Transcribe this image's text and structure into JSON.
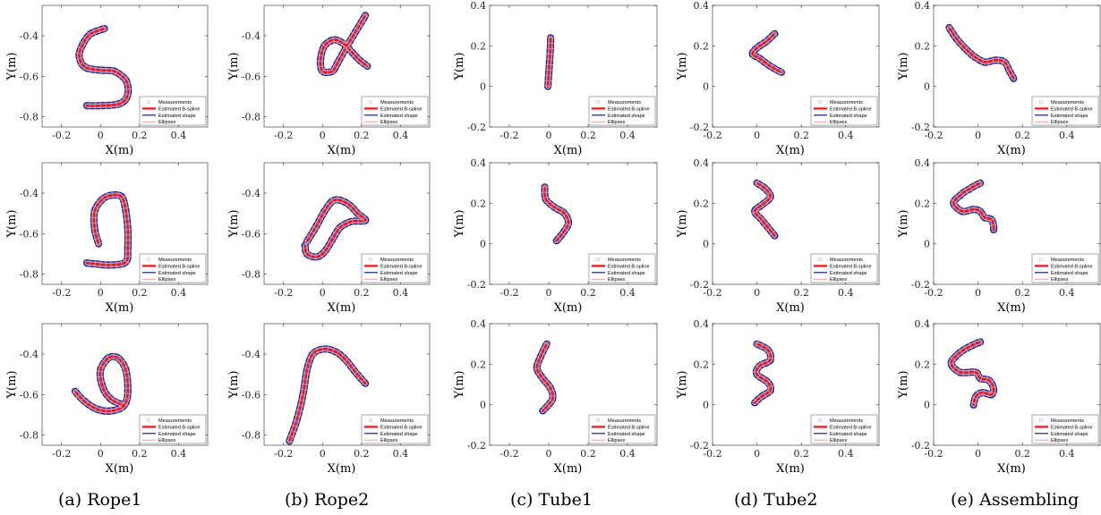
{
  "legend_entries": [
    "Measurements",
    "Estimated B-spline",
    "Estimated shape",
    "Ellipses"
  ],
  "colors": {
    "measurements": "#b9b9ee",
    "bspline": "#e8141e",
    "shape": "#1a1a6e",
    "ellipses": "#ff7f7f",
    "axis": "#262626",
    "tick_text": "#262626"
  },
  "captions": [
    "(a) Rope1",
    "(b) Rope2",
    "(c) Tube1",
    "(d) Tube2",
    "(e) Assembling"
  ],
  "chart_data": [
    {
      "type": "scatter",
      "panel": "a1",
      "xlabel": "X(m)",
      "ylabel": "Y(m)",
      "xlim": [
        -0.3,
        0.55
      ],
      "ylim": [
        -0.85,
        -0.25
      ],
      "xticks": [
        "-0.2",
        "0",
        "0.2",
        "0.4"
      ],
      "yticks": [
        "-0.4",
        "-0.6",
        "-0.8"
      ],
      "legend": "bottom-right",
      "curve": [
        [
          0.02,
          -0.365
        ],
        [
          -0.05,
          -0.39
        ],
        [
          -0.09,
          -0.44
        ],
        [
          -0.11,
          -0.5
        ],
        [
          -0.08,
          -0.555
        ],
        [
          0.0,
          -0.57
        ],
        [
          0.07,
          -0.575
        ],
        [
          0.13,
          -0.62
        ],
        [
          0.14,
          -0.69
        ],
        [
          0.1,
          -0.735
        ],
        [
          0.0,
          -0.745
        ],
        [
          -0.07,
          -0.745
        ]
      ]
    },
    {
      "type": "scatter",
      "panel": "b1",
      "xlabel": "X(m)",
      "ylabel": "Y(m)",
      "xlim": [
        -0.3,
        0.55
      ],
      "ylim": [
        -0.85,
        -0.25
      ],
      "xticks": [
        "-0.2",
        "0",
        "0.2",
        "0.4"
      ],
      "yticks": [
        "-0.4",
        "-0.6",
        "-0.8"
      ],
      "legend": "bottom-right",
      "curve": [
        [
          0.22,
          -0.3
        ],
        [
          0.17,
          -0.38
        ],
        [
          0.12,
          -0.46
        ],
        [
          0.08,
          -0.53
        ],
        [
          0.05,
          -0.575
        ],
        [
          0.0,
          -0.575
        ],
        [
          -0.01,
          -0.52
        ],
        [
          0.01,
          -0.45
        ],
        [
          0.06,
          -0.42
        ],
        [
          0.11,
          -0.44
        ],
        [
          0.15,
          -0.48
        ],
        [
          0.19,
          -0.52
        ],
        [
          0.23,
          -0.55
        ]
      ]
    },
    {
      "type": "scatter",
      "panel": "c1",
      "xlabel": "X(m)",
      "ylabel": "Y(m)",
      "xlim": [
        -0.3,
        0.55
      ],
      "ylim": [
        -0.2,
        0.4
      ],
      "xticks": [
        "-0.2",
        "0",
        "0.2",
        "0.4"
      ],
      "yticks": [
        "0.4",
        "0.2",
        "0",
        "-0.2"
      ],
      "legend": "bottom-right",
      "curve": [
        [
          0.01,
          0.24
        ],
        [
          0.008,
          0.18
        ],
        [
          0.004,
          0.12
        ],
        [
          0.0,
          0.06
        ],
        [
          -0.004,
          0.0
        ]
      ]
    },
    {
      "type": "scatter",
      "panel": "d1",
      "xlabel": "X(m)",
      "ylabel": "Y(m)",
      "xlim": [
        -0.2,
        0.55
      ],
      "ylim": [
        -0.2,
        0.4
      ],
      "xticks": [
        "-0.2",
        "0",
        "0.2",
        "0.4"
      ],
      "yticks": [
        "0.4",
        "0.2",
        "0",
        "-0.2"
      ],
      "legend": "bottom-right",
      "curve": [
        [
          0.08,
          0.26
        ],
        [
          0.04,
          0.22
        ],
        [
          0.0,
          0.19
        ],
        [
          -0.02,
          0.16
        ],
        [
          0.01,
          0.14
        ],
        [
          0.06,
          0.1
        ],
        [
          0.11,
          0.07
        ]
      ]
    },
    {
      "type": "scatter",
      "panel": "e1",
      "xlabel": "X(m)",
      "ylabel": "Y(m)",
      "xlim": [
        -0.2,
        0.55
      ],
      "ylim": [
        -0.2,
        0.4
      ],
      "xticks": [
        "-0.2",
        "0",
        "0.2",
        "0.4"
      ],
      "yticks": [
        "0.4",
        "0.2",
        "0",
        "-0.2"
      ],
      "legend": "bottom-right",
      "curve": [
        [
          -0.13,
          0.29
        ],
        [
          -0.1,
          0.24
        ],
        [
          -0.06,
          0.19
        ],
        [
          -0.02,
          0.15
        ],
        [
          0.03,
          0.12
        ],
        [
          0.08,
          0.13
        ],
        [
          0.12,
          0.12
        ],
        [
          0.14,
          0.08
        ],
        [
          0.16,
          0.04
        ]
      ]
    },
    {
      "type": "scatter",
      "panel": "a2",
      "xlabel": "X(m)",
      "ylabel": "Y(m)",
      "xlim": [
        -0.3,
        0.55
      ],
      "ylim": [
        -0.85,
        -0.25
      ],
      "xticks": [
        "-0.2",
        "0",
        "0.2",
        "0.4"
      ],
      "yticks": [
        "-0.4",
        "-0.6",
        "-0.8"
      ],
      "legend": "bottom-right",
      "curve": [
        [
          -0.01,
          -0.65
        ],
        [
          -0.03,
          -0.58
        ],
        [
          -0.03,
          -0.49
        ],
        [
          0.01,
          -0.43
        ],
        [
          0.06,
          -0.41
        ],
        [
          0.11,
          -0.42
        ],
        [
          0.13,
          -0.49
        ],
        [
          0.14,
          -0.58
        ],
        [
          0.14,
          -0.67
        ],
        [
          0.13,
          -0.74
        ],
        [
          0.05,
          -0.755
        ],
        [
          -0.02,
          -0.75
        ],
        [
          -0.07,
          -0.745
        ]
      ]
    },
    {
      "type": "scatter",
      "panel": "b2",
      "xlabel": "X(m)",
      "ylabel": "Y(m)",
      "xlim": [
        -0.3,
        0.55
      ],
      "ylim": [
        -0.85,
        -0.25
      ],
      "xticks": [
        "-0.2",
        "0",
        "0.2",
        "0.4"
      ],
      "yticks": [
        "-0.4",
        "-0.6",
        "-0.8"
      ],
      "legend": "bottom-right",
      "curve": [
        [
          -0.08,
          -0.64
        ],
        [
          -0.03,
          -0.56
        ],
        [
          0.01,
          -0.49
        ],
        [
          0.05,
          -0.44
        ],
        [
          0.09,
          -0.435
        ],
        [
          0.14,
          -0.46
        ],
        [
          0.18,
          -0.5
        ],
        [
          0.22,
          -0.535
        ],
        [
          0.15,
          -0.54
        ],
        [
          0.09,
          -0.57
        ],
        [
          0.05,
          -0.63
        ],
        [
          0.01,
          -0.69
        ],
        [
          -0.03,
          -0.715
        ],
        [
          -0.08,
          -0.7
        ],
        [
          -0.09,
          -0.66
        ]
      ]
    },
    {
      "type": "scatter",
      "panel": "c2",
      "xlabel": "X(m)",
      "ylabel": "Y(m)",
      "xlim": [
        -0.3,
        0.55
      ],
      "ylim": [
        -0.2,
        0.4
      ],
      "xticks": [
        "-0.2",
        "0",
        "0.2",
        "0.4"
      ],
      "yticks": [
        "0.4",
        "0.2",
        "0",
        "-0.2"
      ],
      "legend": "bottom-right",
      "curve": [
        [
          -0.02,
          0.28
        ],
        [
          -0.015,
          0.22
        ],
        [
          0.03,
          0.18
        ],
        [
          0.08,
          0.15
        ],
        [
          0.1,
          0.1
        ],
        [
          0.07,
          0.05
        ],
        [
          0.04,
          0.015
        ]
      ]
    },
    {
      "type": "scatter",
      "panel": "d2",
      "xlabel": "X(m)",
      "ylabel": "Y(m)",
      "xlim": [
        -0.2,
        0.55
      ],
      "ylim": [
        -0.2,
        0.4
      ],
      "xticks": [
        "-0.2",
        "0",
        "0.2",
        "0.4"
      ],
      "yticks": [
        "0.4",
        "0.2",
        "0",
        "-0.2"
      ],
      "legend": "bottom-right",
      "curve": [
        [
          0.0,
          0.3
        ],
        [
          0.04,
          0.27
        ],
        [
          0.06,
          0.23
        ],
        [
          0.02,
          0.19
        ],
        [
          -0.01,
          0.16
        ],
        [
          0.02,
          0.12
        ],
        [
          0.05,
          0.08
        ],
        [
          0.08,
          0.04
        ]
      ]
    },
    {
      "type": "scatter",
      "panel": "e2",
      "xlabel": "X(m)",
      "ylabel": "Y(m)",
      "xlim": [
        -0.2,
        0.55
      ],
      "ylim": [
        -0.2,
        0.4
      ],
      "xticks": [
        "-0.2",
        "0",
        "0.2",
        "0.4"
      ],
      "yticks": [
        "0.4",
        "0.2",
        "0",
        "-0.2"
      ],
      "legend": "bottom-right",
      "curve": [
        [
          0.01,
          0.3
        ],
        [
          -0.04,
          0.27
        ],
        [
          -0.08,
          0.24
        ],
        [
          -0.11,
          0.2
        ],
        [
          -0.07,
          0.16
        ],
        [
          -0.02,
          0.17
        ],
        [
          0.01,
          0.16
        ],
        [
          0.03,
          0.13
        ],
        [
          0.06,
          0.12
        ],
        [
          0.07,
          0.09
        ],
        [
          0.07,
          0.07
        ]
      ]
    },
    {
      "type": "scatter",
      "panel": "a3",
      "xlabel": "X(m)",
      "ylabel": "Y(m)",
      "xlim": [
        -0.3,
        0.55
      ],
      "ylim": [
        -0.85,
        -0.25
      ],
      "xticks": [
        "-0.2",
        "0",
        "0.2",
        "0.4"
      ],
      "yticks": [
        "-0.4",
        "-0.6",
        "-0.8"
      ],
      "legend": "bottom-right",
      "curve": [
        [
          -0.13,
          -0.585
        ],
        [
          -0.08,
          -0.635
        ],
        [
          -0.01,
          -0.675
        ],
        [
          0.06,
          -0.68
        ],
        [
          0.12,
          -0.655
        ],
        [
          0.14,
          -0.59
        ],
        [
          0.13,
          -0.48
        ],
        [
          0.09,
          -0.42
        ],
        [
          0.04,
          -0.42
        ],
        [
          0.0,
          -0.48
        ],
        [
          0.01,
          -0.56
        ],
        [
          0.05,
          -0.62
        ],
        [
          0.11,
          -0.65
        ]
      ]
    },
    {
      "type": "scatter",
      "panel": "b3",
      "xlabel": "X(m)",
      "ylabel": "Y(m)",
      "xlim": [
        -0.3,
        0.55
      ],
      "ylim": [
        -0.85,
        -0.25
      ],
      "xticks": [
        "-0.2",
        "0",
        "0.2",
        "0.4"
      ],
      "yticks": [
        "-0.4",
        "-0.6",
        "-0.8"
      ],
      "legend": "bottom-right",
      "curve": [
        [
          -0.17,
          -0.83
        ],
        [
          -0.13,
          -0.72
        ],
        [
          -0.1,
          -0.6
        ],
        [
          -0.08,
          -0.48
        ],
        [
          -0.05,
          -0.4
        ],
        [
          0.01,
          -0.375
        ],
        [
          0.07,
          -0.39
        ],
        [
          0.12,
          -0.43
        ],
        [
          0.17,
          -0.49
        ],
        [
          0.22,
          -0.545
        ]
      ]
    },
    {
      "type": "scatter",
      "panel": "c3",
      "xlabel": "X(m)",
      "ylabel": "Y(m)",
      "xlim": [
        -0.3,
        0.55
      ],
      "ylim": [
        -0.2,
        0.4
      ],
      "xticks": [
        "-0.2",
        "0",
        "0.2",
        "0.4"
      ],
      "yticks": [
        "0.4",
        "0.2",
        "0",
        "-0.2"
      ],
      "legend": "bottom-right",
      "curve": [
        [
          -0.01,
          0.3
        ],
        [
          -0.04,
          0.24
        ],
        [
          -0.06,
          0.18
        ],
        [
          -0.03,
          0.13
        ],
        [
          0.01,
          0.08
        ],
        [
          0.02,
          0.03
        ],
        [
          -0.01,
          -0.01
        ],
        [
          -0.03,
          -0.03
        ]
      ]
    },
    {
      "type": "scatter",
      "panel": "d3",
      "xlabel": "X(m)",
      "ylabel": "Y(m)",
      "xlim": [
        -0.2,
        0.55
      ],
      "ylim": [
        -0.2,
        0.4
      ],
      "xticks": [
        "-0.2",
        "0",
        "0.2",
        "0.4"
      ],
      "yticks": [
        "0.4",
        "0.2",
        "0",
        "-0.2"
      ],
      "legend": "bottom-right",
      "curve": [
        [
          0.0,
          0.3
        ],
        [
          0.05,
          0.27
        ],
        [
          0.06,
          0.22
        ],
        [
          0.01,
          0.19
        ],
        [
          0.0,
          0.15
        ],
        [
          0.05,
          0.11
        ],
        [
          0.06,
          0.07
        ],
        [
          0.02,
          0.04
        ],
        [
          -0.01,
          0.01
        ]
      ]
    },
    {
      "type": "scatter",
      "panel": "e3",
      "xlabel": "X(m)",
      "ylabel": "Y(m)",
      "xlim": [
        -0.2,
        0.55
      ],
      "ylim": [
        -0.2,
        0.4
      ],
      "xticks": [
        "-0.2",
        "0",
        "0.2",
        "0.4"
      ],
      "yticks": [
        "0.4",
        "0.2",
        "0",
        "-0.2"
      ],
      "legend": "bottom-right",
      "curve": [
        [
          0.01,
          0.31
        ],
        [
          -0.05,
          0.28
        ],
        [
          -0.1,
          0.24
        ],
        [
          -0.12,
          0.2
        ],
        [
          -0.08,
          0.16
        ],
        [
          -0.01,
          0.16
        ],
        [
          0.01,
          0.13
        ],
        [
          0.05,
          0.12
        ],
        [
          0.07,
          0.08
        ],
        [
          0.06,
          0.05
        ],
        [
          0.02,
          0.06
        ],
        [
          -0.01,
          0.04
        ],
        [
          -0.02,
          0.0
        ]
      ]
    }
  ]
}
